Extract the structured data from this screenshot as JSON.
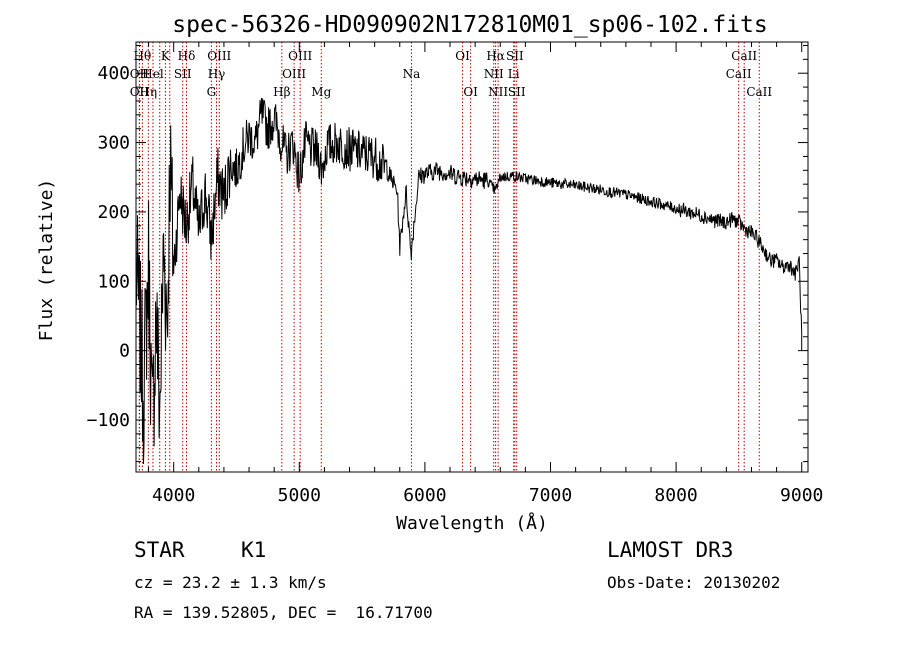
{
  "chart_data": {
    "type": "line",
    "title": "spec-56326-HD090902N172810M01_sp06-102.fits",
    "xlabel": "Wavelength (Å)",
    "ylabel": "Flux (relative)",
    "xlim": [
      3700,
      9050
    ],
    "ylim": [
      -175,
      445
    ],
    "xticks": [
      4000,
      5000,
      6000,
      7000,
      8000,
      9000
    ],
    "xtick_labels": [
      "4000",
      "5000",
      "6000",
      "7000",
      "8000",
      "9000"
    ],
    "yticks": [
      -100,
      0,
      100,
      200,
      300,
      400
    ],
    "ytick_labels": [
      "−100",
      "0",
      "100",
      "200",
      "300",
      "400"
    ],
    "series": [
      {
        "name": "spectrum",
        "anchors": [
          [
            3700,
            120
          ],
          [
            3730,
            40
          ],
          [
            3760,
            -60
          ],
          [
            3800,
            130
          ],
          [
            3830,
            -120
          ],
          [
            3860,
            60
          ],
          [
            3890,
            -90
          ],
          [
            3920,
            150
          ],
          [
            3950,
            40
          ],
          [
            3970,
            280
          ],
          [
            4000,
            120
          ],
          [
            4050,
            230
          ],
          [
            4100,
            180
          ],
          [
            4150,
            240
          ],
          [
            4200,
            170
          ],
          [
            4250,
            230
          ],
          [
            4300,
            160
          ],
          [
            4350,
            250
          ],
          [
            4400,
            220
          ],
          [
            4450,
            270
          ],
          [
            4500,
            260
          ],
          [
            4550,
            290
          ],
          [
            4600,
            310
          ],
          [
            4650,
            300
          ],
          [
            4700,
            340
          ],
          [
            4750,
            320
          ],
          [
            4800,
            335
          ],
          [
            4860,
            300
          ],
          [
            4900,
            280
          ],
          [
            4950,
            300
          ],
          [
            5000,
            250
          ],
          [
            5050,
            300
          ],
          [
            5100,
            290
          ],
          [
            5150,
            285
          ],
          [
            5180,
            260
          ],
          [
            5220,
            295
          ],
          [
            5300,
            300
          ],
          [
            5400,
            290
          ],
          [
            5500,
            285
          ],
          [
            5600,
            280
          ],
          [
            5700,
            260
          ],
          [
            5780,
            230
          ],
          [
            5800,
            150
          ],
          [
            5850,
            230
          ],
          [
            5890,
            140
          ],
          [
            5950,
            250
          ],
          [
            6000,
            255
          ],
          [
            6100,
            260
          ],
          [
            6200,
            255
          ],
          [
            6300,
            250
          ],
          [
            6400,
            248
          ],
          [
            6500,
            245
          ],
          [
            6560,
            230
          ],
          [
            6600,
            250
          ],
          [
            6700,
            252
          ],
          [
            6800,
            248
          ],
          [
            6900,
            245
          ],
          [
            7000,
            242
          ],
          [
            7100,
            240
          ],
          [
            7200,
            238
          ],
          [
            7300,
            235
          ],
          [
            7400,
            232
          ],
          [
            7500,
            228
          ],
          [
            7600,
            225
          ],
          [
            7700,
            220
          ],
          [
            7800,
            215
          ],
          [
            7900,
            210
          ],
          [
            8000,
            205
          ],
          [
            8100,
            200
          ],
          [
            8200,
            195
          ],
          [
            8300,
            188
          ],
          [
            8400,
            185
          ],
          [
            8450,
            190
          ],
          [
            8500,
            185
          ],
          [
            8550,
            175
          ],
          [
            8600,
            170
          ],
          [
            8650,
            160
          ],
          [
            8700,
            145
          ],
          [
            8750,
            130
          ],
          [
            8800,
            130
          ],
          [
            8850,
            120
          ],
          [
            8900,
            125
          ],
          [
            8950,
            110
          ],
          [
            8980,
            130
          ],
          [
            9000,
            20
          ]
        ]
      }
    ],
    "line_markers": [
      {
        "wavelength": 3751,
        "label": "Hθ",
        "row": 0
      },
      {
        "wavelength": 3727,
        "label": "OII",
        "row": 1
      },
      {
        "wavelength": 3727,
        "label": "OII",
        "row": 2
      },
      {
        "wavelength": 3798,
        "label": "Hη",
        "row": 2
      },
      {
        "wavelength": 3835,
        "label": "Hel",
        "row": 1
      },
      {
        "wavelength": 3889,
        "label": "",
        "row": 2
      },
      {
        "wavelength": 3934,
        "label": "K",
        "row": 0
      },
      {
        "wavelength": 3969,
        "label": "",
        "row": 1
      },
      {
        "wavelength": 4102,
        "label": "Hδ",
        "row": 0
      },
      {
        "wavelength": 4072,
        "label": "SII",
        "row": 1
      },
      {
        "wavelength": 4300,
        "label": "G",
        "row": 2
      },
      {
        "wavelength": 4341,
        "label": "Hγ",
        "row": 1
      },
      {
        "wavelength": 4363,
        "label": "OIII",
        "row": 0
      },
      {
        "wavelength": 4861,
        "label": "Hβ",
        "row": 2
      },
      {
        "wavelength": 4959,
        "label": "OIII",
        "row": 1
      },
      {
        "wavelength": 5007,
        "label": "OIII",
        "row": 0
      },
      {
        "wavelength": 5175,
        "label": "Mg",
        "row": 2
      },
      {
        "wavelength": 5893,
        "label": "Na",
        "row": 1
      },
      {
        "wavelength": 6300,
        "label": "OI",
        "row": 0
      },
      {
        "wavelength": 6364,
        "label": "OI",
        "row": 2
      },
      {
        "wavelength": 6548,
        "label": "NII",
        "row": 1
      },
      {
        "wavelength": 6563,
        "label": "Hα",
        "row": 0
      },
      {
        "wavelength": 6583,
        "label": "NII",
        "row": 2
      },
      {
        "wavelength": 6707,
        "label": "Li",
        "row": 1
      },
      {
        "wavelength": 6716,
        "label": "SII",
        "row": 0
      },
      {
        "wavelength": 6731,
        "label": "SII",
        "row": 2
      },
      {
        "wavelength": 8498,
        "label": "CaII",
        "row": 1
      },
      {
        "wavelength": 8542,
        "label": "CaII",
        "row": 0
      },
      {
        "wavelength": 8662,
        "label": "CaII",
        "row": 2
      }
    ],
    "colors": {
      "spectrum": "#000000",
      "markers": "#c00000",
      "axes": "#000000"
    }
  },
  "info": {
    "object_class": "STAR",
    "subclass": "K1",
    "redshift": "cz = 23.2 ± 1.3 km/s",
    "coords": "RA = 139.52805, DEC =  16.71700",
    "survey": "LAMOST DR3",
    "obs_date": "Obs-Date: 20130202"
  }
}
